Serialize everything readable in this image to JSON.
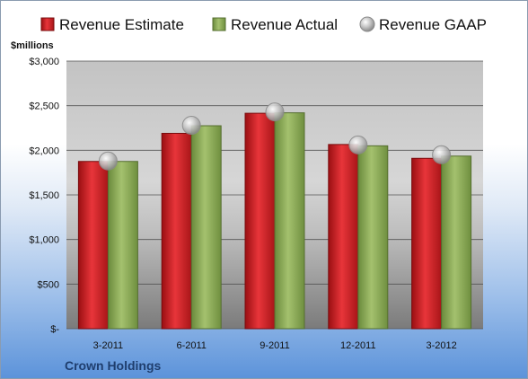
{
  "chart_data": {
    "type": "bar",
    "unit_label": "$millions",
    "company": "Crown Holdings",
    "categories": [
      "3-2011",
      "6-2011",
      "9-2011",
      "12-2011",
      "3-2012"
    ],
    "series": [
      {
        "name": "Revenue Estimate",
        "kind": "bar",
        "color": "#d41f26",
        "values": [
          1875,
          2190,
          2415,
          2065,
          1910
        ]
      },
      {
        "name": "Revenue Actual",
        "kind": "bar",
        "color": "#8fad5a",
        "values": [
          1875,
          2275,
          2420,
          2050,
          1935
        ]
      },
      {
        "name": "Revenue GAAP",
        "kind": "marker",
        "color": "#b8b8b8",
        "values": [
          1880,
          2280,
          2430,
          2060,
          1950
        ]
      }
    ],
    "ylim": [
      0,
      3000
    ],
    "yticks": [
      0,
      500,
      1000,
      1500,
      2000,
      2500,
      3000
    ],
    "ytick_labels": [
      "$-",
      "$500",
      "$1,000",
      "$1,500",
      "$2,000",
      "$2,500",
      "$3,000"
    ],
    "grid": true,
    "legend_position": "top"
  }
}
